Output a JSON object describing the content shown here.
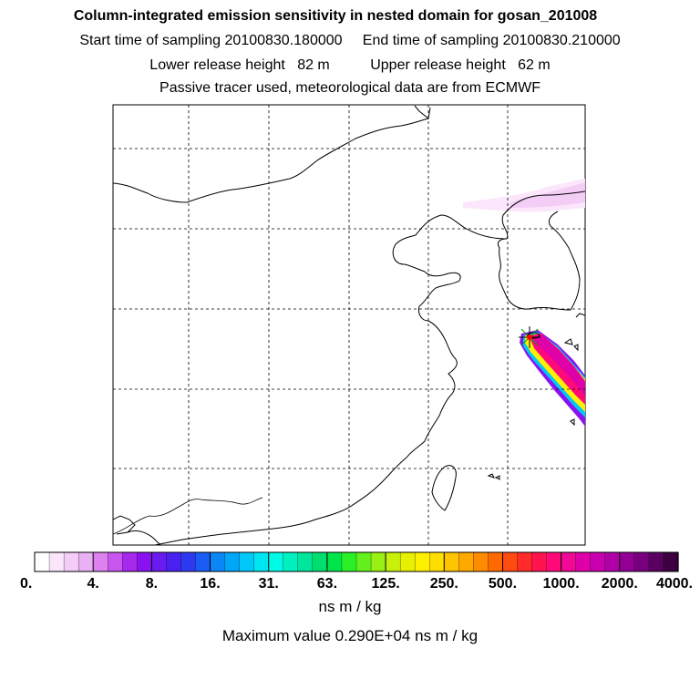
{
  "header": {
    "title": "Column-integrated emission sensitivity in nested domain for gosan_201008",
    "start_label": "Start time of sampling",
    "start_value": "20100830.180000",
    "end_label": "End time of sampling",
    "end_value": "20100830.210000",
    "lower_label": "Lower release height",
    "lower_value": "82 m",
    "upper_label": "Upper release height",
    "upper_value": "62 m",
    "note": "Passive tracer used, meteorological data are from ECMWF"
  },
  "chart_data": {
    "type": "heatmap",
    "title": "Column-integrated emission sensitivity in nested domain for gosan_201008",
    "units": "ns m / kg",
    "max_value_label": "Maximum value",
    "max_value": "0.290E+04",
    "max_value_units": "ns m / kg",
    "colorbar_ticks": [
      "0.",
      "4.",
      "8.",
      "16.",
      "31.",
      "63.",
      "125.",
      "250.",
      "500.",
      "1000.",
      "2000.",
      "4000."
    ],
    "colorbar_colors": [
      "#ffffff",
      "#fbe6fb",
      "#f4cdf7",
      "#eab0f4",
      "#dd80f0",
      "#c855ee",
      "#a629ec",
      "#8a12f0",
      "#6a1bf0",
      "#4a21f0",
      "#2e3af2",
      "#1a5cf4",
      "#0a86f6",
      "#00a6f8",
      "#00c8f8",
      "#00e6f0",
      "#00fae6",
      "#00f0c0",
      "#00e69a",
      "#00de70",
      "#00e64a",
      "#2af028",
      "#62f01e",
      "#9af014",
      "#c8f00a",
      "#e6f000",
      "#fff000",
      "#ffde00",
      "#ffc400",
      "#ffa800",
      "#ff8c00",
      "#ff6a00",
      "#ff4a10",
      "#ff2a2a",
      "#ff1450",
      "#ff0a78",
      "#f00896",
      "#e000a8",
      "#c800b0",
      "#b000a8",
      "#940096",
      "#780080",
      "#5a0060",
      "#3c0040"
    ],
    "grid": true,
    "station_marker": "Gosan release point"
  }
}
